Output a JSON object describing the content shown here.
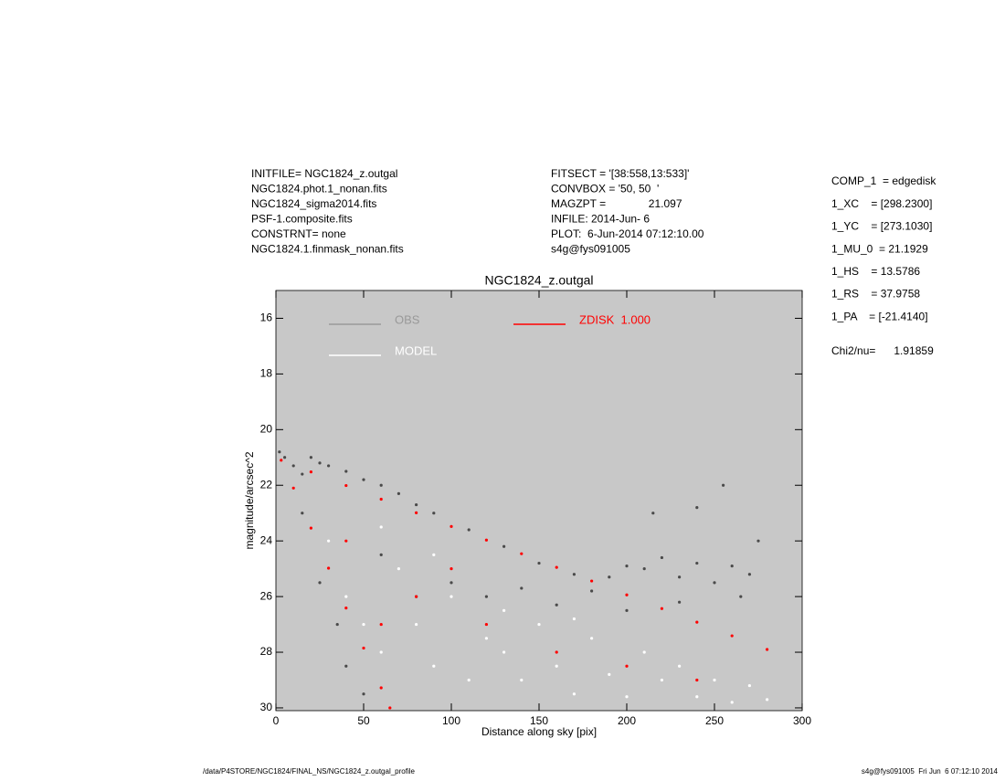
{
  "header": {
    "left": [
      "INITFILE= NGC1824_z.outgal",
      "NGC1824.phot.1_nonan.fits",
      "NGC1824_sigma2014.fits",
      "PSF-1.composite.fits",
      "CONSTRNT= none",
      "NGC1824.1.finmask_nonan.fits"
    ],
    "middle": [
      "FITSECT = '[38:558,13:533]'",
      "CONVBOX = '50, 50  '",
      "MAGZPT =              21.097",
      "INFILE: 2014-Jun- 6",
      "PLOT:  6-Jun-2014 07:12:10.00",
      "s4g@fys091005"
    ],
    "right": [
      "COMP_1  = edgedisk",
      "1_XC    = [298.2300]",
      "1_YC    = [273.1030]",
      "1_MU_0  = 21.1929",
      "1_HS    = 13.5786",
      "1_RS    = 37.9758",
      "1_PA    = [-21.4140]"
    ],
    "chi2": "Chi2/nu=      1.91859"
  },
  "footer": {
    "left": "/data/P4STORE/NGC1824/FINAL_NS/NGC1824_z.outgal_profile",
    "right": "s4g@fys091005  Fri Jun  6 07:12:10 2014"
  },
  "chart_data": {
    "type": "scatter",
    "title": "NGC1824_z.outgal",
    "x_label": "Distance along sky [pix]",
    "y_label": "magnitude/arcsec^2",
    "xlim": [
      0,
      300
    ],
    "ylim": [
      30.1,
      15
    ],
    "xticks": [
      0,
      50,
      100,
      150,
      200,
      250,
      300
    ],
    "yticks": [
      16,
      18,
      20,
      22,
      24,
      26,
      28,
      30
    ],
    "background": "#c8c8c8",
    "series": [
      {
        "name": "OBS",
        "color": "#4a4a4a",
        "legend_color": "#999999",
        "x": [
          2,
          5,
          10,
          15,
          20,
          25,
          30,
          40,
          50,
          60,
          70,
          80,
          90,
          110,
          130,
          150,
          170,
          190,
          200,
          210,
          220,
          230,
          240,
          250,
          260,
          270,
          215,
          240,
          255,
          275,
          15,
          25,
          35,
          40,
          50,
          100,
          120,
          140,
          160,
          180,
          60,
          80,
          200,
          230,
          265
        ],
        "y": [
          20.8,
          21.0,
          21.3,
          21.6,
          21.0,
          21.2,
          21.3,
          21.5,
          21.8,
          22.0,
          22.3,
          22.7,
          23.0,
          23.6,
          24.2,
          24.8,
          25.2,
          25.3,
          24.9,
          25.0,
          24.6,
          25.3,
          24.8,
          25.5,
          24.9,
          25.2,
          23.0,
          22.8,
          22.0,
          24.0,
          23.0,
          25.5,
          27.0,
          28.5,
          29.5,
          25.5,
          26.0,
          25.7,
          26.3,
          25.8,
          24.5,
          26.0,
          26.5,
          26.2,
          26.0
        ]
      },
      {
        "name": "MODEL",
        "color": "#ffffff",
        "legend_color": "#ffffff",
        "x": [
          30,
          40,
          50,
          60,
          70,
          80,
          90,
          100,
          110,
          120,
          130,
          140,
          150,
          160,
          170,
          180,
          190,
          200,
          210,
          220,
          230,
          240,
          250,
          260,
          270,
          280,
          90,
          130,
          170,
          60
        ],
        "y": [
          24,
          26,
          27,
          28,
          25,
          27,
          28.5,
          26,
          29,
          27.5,
          28,
          29,
          27,
          28.5,
          29.5,
          27.5,
          28.8,
          29.6,
          28,
          29,
          28.5,
          29.6,
          29,
          29.8,
          29.2,
          29.7,
          24.5,
          26.5,
          26.8,
          23.5
        ]
      },
      {
        "name": "ZDISK  1.000",
        "color": "#ff0000",
        "legend_color": "#ff0000",
        "x": [
          3,
          20,
          40,
          60,
          80,
          100,
          120,
          140,
          160,
          180,
          200,
          220,
          240,
          260,
          280,
          10,
          20,
          30,
          40,
          50,
          60,
          65,
          40,
          80,
          120,
          160,
          200,
          240,
          100,
          60
        ],
        "y": [
          21.1,
          21.52,
          22.01,
          22.5,
          22.99,
          23.48,
          23.97,
          24.46,
          24.95,
          25.44,
          25.94,
          26.43,
          26.92,
          27.41,
          27.9,
          22.1,
          23.54,
          24.98,
          26.41,
          27.85,
          29.28,
          30.0,
          24,
          26,
          27,
          28,
          28.5,
          29,
          25,
          27
        ]
      }
    ]
  }
}
